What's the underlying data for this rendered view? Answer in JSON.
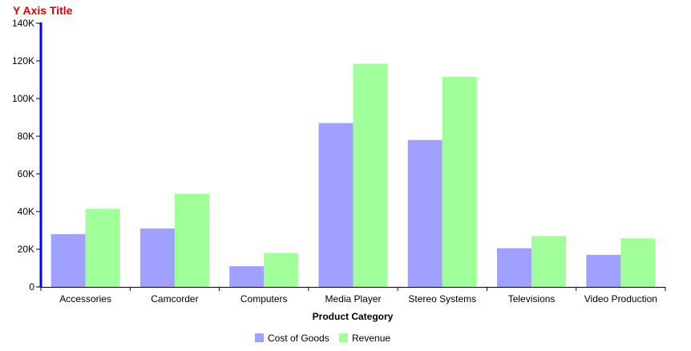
{
  "chart_data": {
    "type": "bar",
    "ylabel": "Y Axis Title",
    "xlabel": "Product Category",
    "categories": [
      "Accessories",
      "Camcorder",
      "Computers",
      "Media Player",
      "Stereo Systems",
      "Televisions",
      "Video Production"
    ],
    "series": [
      {
        "name": "Cost of Goods",
        "color": "#a0a0ff",
        "values": [
          28000,
          31000,
          11000,
          87000,
          78000,
          20500,
          17000
        ]
      },
      {
        "name": "Revenue",
        "color": "#a0ff98",
        "values": [
          41500,
          49500,
          18000,
          118500,
          111500,
          27000,
          25800
        ]
      }
    ],
    "ylim": [
      0,
      140000
    ],
    "yticks": [
      {
        "value": 0,
        "label": "0"
      },
      {
        "value": 20000,
        "label": "20K"
      },
      {
        "value": 40000,
        "label": "40K"
      },
      {
        "value": 60000,
        "label": "60K"
      },
      {
        "value": 80000,
        "label": "80K"
      },
      {
        "value": 100000,
        "label": "100K"
      },
      {
        "value": 120000,
        "label": "120K"
      },
      {
        "value": 140000,
        "label": "140K"
      }
    ],
    "grid": false,
    "legend_position": "bottom-center",
    "colors": {
      "ylabel": "#e00000",
      "y_axis_line": "#0000ff",
      "x_axis_line": "#000000"
    }
  }
}
